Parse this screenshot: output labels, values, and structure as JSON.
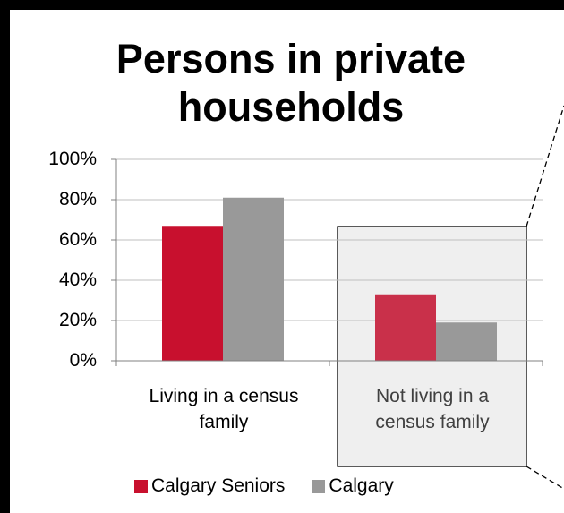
{
  "chart_data": {
    "type": "bar",
    "title_lines": [
      "Persons in private",
      "households"
    ],
    "categories": [
      [
        "Living in a census",
        "family"
      ],
      [
        "Not living in a",
        "census family"
      ]
    ],
    "series": [
      {
        "name": "Calgary Seniors",
        "values": [
          67,
          33
        ],
        "color": "#c8102e"
      },
      {
        "name": "Calgary",
        "values": [
          81,
          19
        ],
        "color": "#999999"
      }
    ],
    "highlight_series_color": "#c9304a",
    "highlighted_category": 1,
    "y_ticks": [
      "0%",
      "20%",
      "40%",
      "60%",
      "80%",
      "100%"
    ],
    "ylim": [
      0,
      100
    ],
    "grid": true,
    "legend_position": "bottom"
  }
}
